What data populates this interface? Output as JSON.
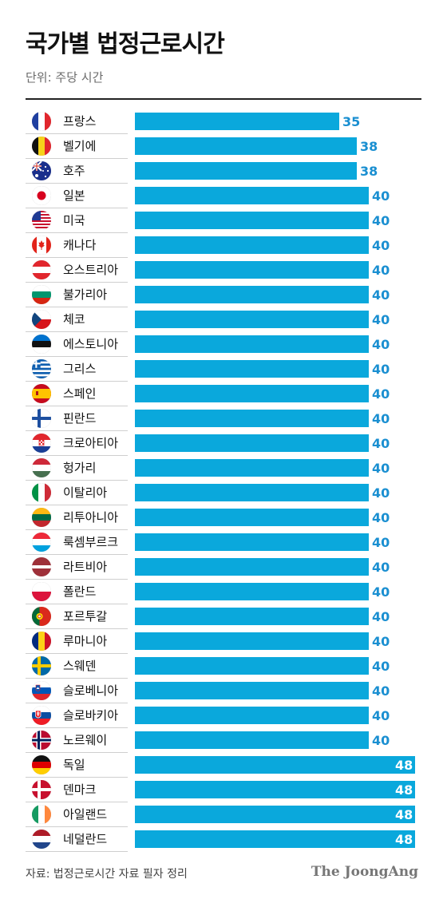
{
  "title": "국가별 법정근로시간",
  "subtitle": "단위: 주당 시간",
  "source": "자료: 법정근로시간 자료 필자 정리",
  "logo_text": "The JoongAng",
  "colors": {
    "bar": "#0aa8dc",
    "label": "#1a8fd1"
  },
  "chart_data": {
    "type": "bar",
    "orientation": "horizontal",
    "title": "국가별 법정근로시간",
    "subtitle": "단위: 주당 시간",
    "xlim": [
      0,
      48
    ],
    "categories": [
      "프랑스",
      "벨기에",
      "호주",
      "일본",
      "미국",
      "캐나다",
      "오스트리아",
      "불가리아",
      "체코",
      "에스토니아",
      "그리스",
      "스페인",
      "핀란드",
      "크로아티아",
      "헝가리",
      "이탈리아",
      "리투아니아",
      "룩셈부르크",
      "라트비아",
      "폴란드",
      "포르투갈",
      "루마니아",
      "스웨덴",
      "슬로베니아",
      "슬로바키아",
      "노르웨이",
      "독일",
      "덴마크",
      "아일랜드",
      "네덜란드"
    ],
    "values": [
      35,
      38,
      38,
      40,
      40,
      40,
      40,
      40,
      40,
      40,
      40,
      40,
      40,
      40,
      40,
      40,
      40,
      40,
      40,
      40,
      40,
      40,
      40,
      40,
      40,
      40,
      48,
      48,
      48,
      48
    ],
    "flags": [
      "france-flag-icon",
      "belgium-flag-icon",
      "australia-flag-icon",
      "japan-flag-icon",
      "usa-flag-icon",
      "canada-flag-icon",
      "austria-flag-icon",
      "bulgaria-flag-icon",
      "czech-flag-icon",
      "estonia-flag-icon",
      "greece-flag-icon",
      "spain-flag-icon",
      "finland-flag-icon",
      "croatia-flag-icon",
      "hungary-flag-icon",
      "italy-flag-icon",
      "lithuania-flag-icon",
      "luxembourg-flag-icon",
      "latvia-flag-icon",
      "poland-flag-icon",
      "portugal-flag-icon",
      "romania-flag-icon",
      "sweden-flag-icon",
      "slovenia-flag-icon",
      "slovakia-flag-icon",
      "norway-flag-icon",
      "germany-flag-icon",
      "denmark-flag-icon",
      "ireland-flag-icon",
      "netherlands-flag-icon"
    ]
  }
}
